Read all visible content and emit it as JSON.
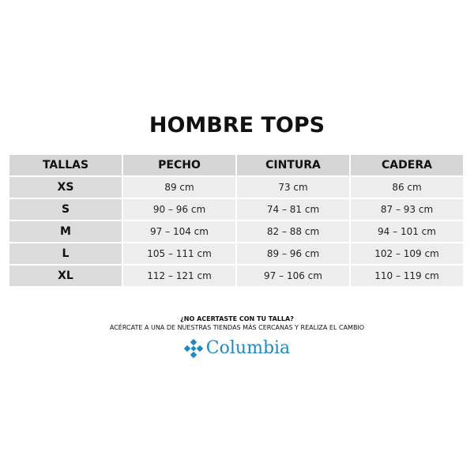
{
  "title": "HOMBRE TOPS",
  "headers": [
    "TALLAS",
    "PECHO",
    "CINTURA",
    "CADERA"
  ],
  "rows": [
    [
      "XS",
      "89 cm",
      "73 cm",
      "86 cm"
    ],
    [
      "S",
      "90 – 96 cm",
      "74 – 81 cm",
      "87 – 93 cm"
    ],
    [
      "M",
      "97 – 104 cm",
      "82 – 88 cm",
      "94 – 101 cm"
    ],
    [
      "L",
      "105 – 111 cm",
      "89 – 96 cm",
      "102 – 109 cm"
    ],
    [
      "XL",
      "112 – 121 cm",
      "97 – 106 cm",
      "110 – 119 cm"
    ]
  ],
  "footer": {
    "question": "¿NO ACERTASTE CON TU TALLA?",
    "note": "ACÉRCATE A UNA DE NUESTRAS TIENDAS MÁS CERCANAS Y REALIZA EL CAMBIO"
  },
  "brand": {
    "name": "Columbia",
    "color": "#1e88c8"
  }
}
